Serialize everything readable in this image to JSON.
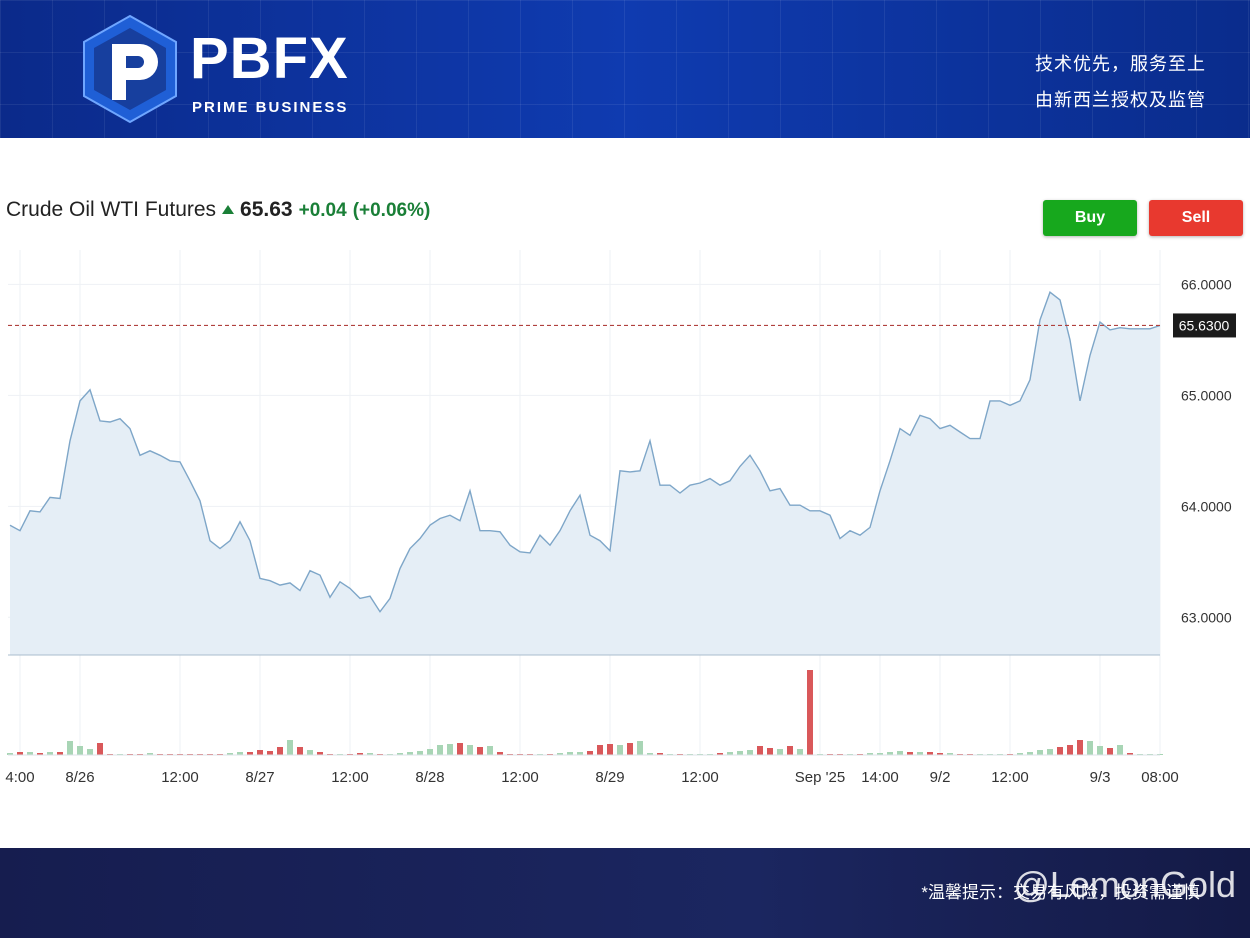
{
  "header": {
    "brand": "PBFX",
    "brand_subtitle": "PRIME BUSINESS",
    "slogan_lines": [
      "技术优先，服务至上",
      "由新西兰授权及监管"
    ]
  },
  "instrument": {
    "name": "Crude Oil WTI Futures",
    "price": "65.63",
    "change": "+0.04",
    "change_percent": "(+0.06%)"
  },
  "buttons": {
    "buy": "Buy",
    "sell": "Sell"
  },
  "chart_data": {
    "type": "line",
    "categories": [
      null,
      "4:00",
      null,
      null,
      null,
      null,
      null,
      "8/26",
      null,
      null,
      null,
      null,
      null,
      null,
      null,
      null,
      null,
      "12:00",
      null,
      null,
      null,
      null,
      null,
      null,
      null,
      "8/27",
      null,
      null,
      null,
      null,
      null,
      null,
      null,
      null,
      "12:00",
      null,
      null,
      null,
      null,
      null,
      null,
      null,
      "8/28",
      null,
      null,
      null,
      null,
      null,
      null,
      null,
      null,
      "12:00",
      null,
      null,
      null,
      null,
      null,
      null,
      null,
      null,
      "8/29",
      null,
      null,
      null,
      null,
      null,
      null,
      null,
      null,
      "12:00",
      null,
      null,
      null,
      null,
      null,
      null,
      null,
      null,
      null,
      null,
      null,
      "Sep '25",
      null,
      null,
      null,
      null,
      null,
      "14:00",
      null,
      null,
      null,
      null,
      null,
      "9/2",
      null,
      null,
      null,
      null,
      null,
      null,
      "12:00",
      null,
      null,
      null,
      null,
      null,
      null,
      null,
      null,
      "9/3",
      null,
      null,
      null,
      null,
      null,
      "08:00"
    ],
    "series": [
      {
        "name": "Price",
        "color": "#7ea6c8",
        "fill": "#e5eef6",
        "values": [
          63.83,
          63.78,
          63.96,
          63.95,
          64.08,
          64.07,
          64.59,
          64.95,
          65.05,
          64.77,
          64.76,
          64.79,
          64.7,
          64.46,
          64.5,
          64.46,
          64.41,
          64.4,
          64.23,
          64.05,
          63.69,
          63.62,
          63.69,
          63.86,
          63.69,
          63.35,
          63.33,
          63.29,
          63.31,
          63.24,
          63.42,
          63.38,
          63.18,
          63.32,
          63.26,
          63.17,
          63.19,
          63.05,
          63.17,
          63.44,
          63.62,
          63.71,
          63.83,
          63.89,
          63.92,
          63.87,
          64.14,
          63.78,
          63.78,
          63.77,
          63.65,
          63.59,
          63.58,
          63.74,
          63.65,
          63.78,
          63.96,
          64.1,
          63.74,
          63.69,
          63.6,
          64.32,
          64.31,
          64.32,
          64.59,
          64.19,
          64.19,
          64.12,
          64.19,
          64.21,
          64.25,
          64.19,
          64.23,
          64.36,
          64.46,
          64.32,
          64.14,
          64.16,
          64.01,
          64.01,
          63.96,
          63.96,
          63.92,
          63.71,
          63.78,
          63.74,
          63.81,
          64.14,
          64.41,
          64.7,
          64.64,
          64.82,
          64.79,
          64.7,
          64.73,
          64.67,
          64.61,
          64.61,
          64.95,
          64.95,
          64.91,
          64.95,
          65.14,
          65.68,
          65.93,
          65.86,
          65.5,
          64.95,
          65.36,
          65.66,
          65.59,
          65.61,
          65.6,
          65.6,
          65.6,
          65.63
        ]
      },
      {
        "name": "Volume",
        "axis": "y2",
        "up_color": "#a8d5b5",
        "down_color": "#d9585a",
        "values": [
          2,
          3,
          3,
          2,
          3,
          3,
          14,
          9,
          6,
          12,
          1,
          1,
          1,
          1,
          2,
          1,
          1,
          1,
          1,
          1,
          1,
          1,
          2,
          3,
          3,
          5,
          4,
          8,
          15,
          8,
          5,
          3,
          1,
          1,
          1,
          2,
          2,
          1,
          1,
          2,
          3,
          4,
          6,
          10,
          11,
          12,
          10,
          8,
          9,
          3,
          1,
          1,
          1,
          1,
          1,
          2,
          3,
          3,
          4,
          10,
          11,
          10,
          12,
          14,
          2,
          2,
          1,
          1,
          1,
          1,
          1,
          2,
          3,
          4,
          5,
          9,
          7,
          6,
          9,
          6,
          85,
          1,
          1,
          1,
          1,
          1,
          2,
          2,
          3,
          4,
          3,
          3,
          3,
          2,
          2,
          1,
          1,
          1,
          1,
          1,
          1,
          2,
          3,
          5,
          6,
          8,
          10,
          15,
          14,
          9,
          7,
          10,
          2,
          1,
          1,
          1
        ]
      }
    ],
    "ylim": [
      62.66,
      66.31
    ],
    "yticks": [
      {
        "value": 63,
        "label": "63.0000"
      },
      {
        "value": 64,
        "label": "64.0000"
      },
      {
        "value": 65,
        "label": "65.0000"
      },
      {
        "value": 66,
        "label": "66.0000"
      }
    ],
    "y2lim": [
      0,
      90
    ],
    "last_price": {
      "value": 65.63,
      "label": "65.6300",
      "color": "#b0413e"
    },
    "grid": true
  },
  "footer": {
    "notice": "*温馨提示：交易有风险，投资需谨慎",
    "watermark": "@LemonGold"
  }
}
